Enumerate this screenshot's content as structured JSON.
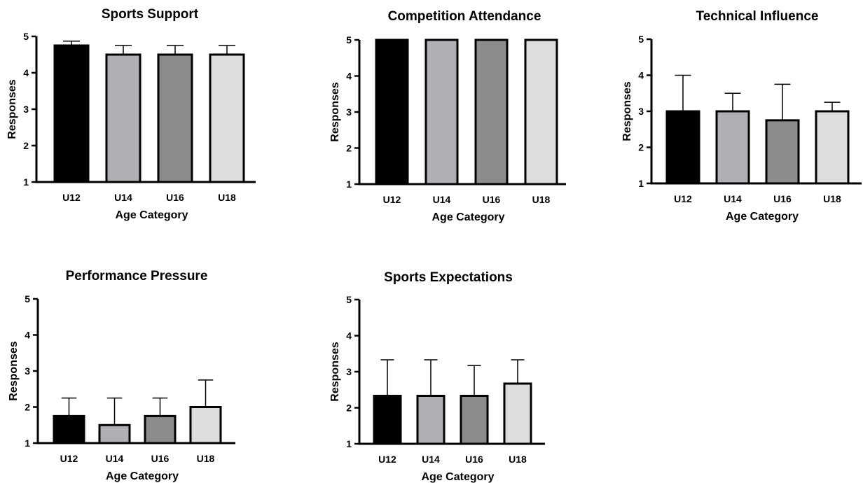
{
  "chart_data": [
    {
      "type": "bar",
      "title": "Sports Support",
      "xlabel": "Age Category",
      "ylabel": "Responses",
      "categories": [
        "U12",
        "U14",
        "U16",
        "U18"
      ],
      "values": [
        4.75,
        4.5,
        4.5,
        4.5
      ],
      "error_upper": [
        4.87,
        4.75,
        4.75,
        4.75
      ],
      "ylim": [
        1,
        5
      ],
      "yticks": [
        "1",
        "2",
        "3",
        "4",
        "5"
      ],
      "bar_colors": [
        "#000000",
        "#b0b0b4",
        "#8c8c8c",
        "#dddddd"
      ],
      "grid": false
    },
    {
      "type": "bar",
      "title": "Competition Attendance",
      "xlabel": "Age Category",
      "ylabel": "Responses",
      "categories": [
        "U12",
        "U14",
        "U16",
        "U18"
      ],
      "values": [
        5,
        5,
        5,
        5
      ],
      "error_upper": [
        5,
        5,
        5,
        5
      ],
      "ylim": [
        1,
        5
      ],
      "yticks": [
        "1",
        "2",
        "3",
        "4",
        "5"
      ],
      "bar_colors": [
        "#000000",
        "#b0b0b4",
        "#8c8c8c",
        "#dddddd"
      ],
      "grid": false
    },
    {
      "type": "bar",
      "title": "Technical Influence",
      "xlabel": "Age Category",
      "ylabel": "Responses",
      "categories": [
        "U12",
        "U14",
        "U16",
        "U18"
      ],
      "values": [
        3,
        3,
        2.75,
        3
      ],
      "error_upper": [
        4,
        3.5,
        3.75,
        3.25
      ],
      "ylim": [
        1,
        5
      ],
      "yticks": [
        "1",
        "2",
        "3",
        "4",
        "5"
      ],
      "bar_colors": [
        "#000000",
        "#b0b0b4",
        "#8c8c8c",
        "#dddddd"
      ],
      "grid": false
    },
    {
      "type": "bar",
      "title": "Performance Pressure",
      "xlabel": "Age Category",
      "ylabel": "Responses",
      "categories": [
        "U12",
        "U14",
        "U16",
        "U18"
      ],
      "values": [
        1.75,
        1.5,
        1.75,
        2.0
      ],
      "error_upper": [
        2.25,
        2.25,
        2.25,
        2.75
      ],
      "ylim": [
        1,
        5
      ],
      "yticks": [
        "1",
        "2",
        "3",
        "4",
        "5"
      ],
      "bar_colors": [
        "#000000",
        "#b0b0b4",
        "#8c8c8c",
        "#dddddd"
      ],
      "grid": false
    },
    {
      "type": "bar",
      "title": "Sports Expectations",
      "xlabel": "Age Category",
      "ylabel": "Responses",
      "categories": [
        "U12",
        "U14",
        "U16",
        "U18"
      ],
      "values": [
        2.33,
        2.33,
        2.33,
        2.67
      ],
      "error_upper": [
        3.33,
        3.33,
        3.17,
        3.33
      ],
      "ylim": [
        1,
        5
      ],
      "yticks": [
        "1",
        "2",
        "3",
        "4",
        "5"
      ],
      "bar_colors": [
        "#000000",
        "#b0b0b4",
        "#8c8c8c",
        "#dddddd"
      ],
      "grid": false
    }
  ]
}
